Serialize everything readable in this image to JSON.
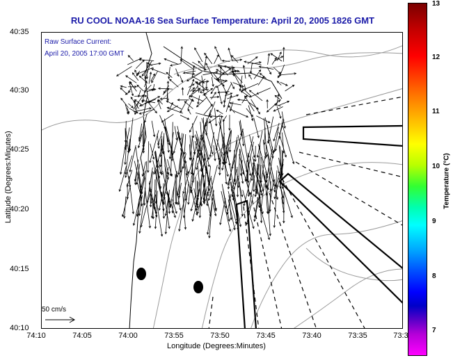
{
  "title": "RU COOL  NOAA-16  Sea Surface Temperature:  April 20, 2005 1826 GMT",
  "inset": {
    "line1": "Raw Surface Current:",
    "line2": "April 20, 2005 17:00 GMT"
  },
  "axes": {
    "xlabel": "Longitude (Degrees:Minutes)",
    "ylabel": "Latitude (Degrees:Minutes)",
    "yticks": [
      "40:35",
      "40:30",
      "40:25",
      "40:20",
      "40:15",
      "40:10"
    ],
    "xticks": [
      "74:10",
      "74:05",
      "74:00",
      "73:55",
      "73:50",
      "73:45",
      "73:40",
      "73:35",
      "73:3"
    ]
  },
  "scale": {
    "label": "50 cm/s"
  },
  "colorbar": {
    "label": "Temperature (°C)",
    "ticks": [
      "13",
      "12",
      "11",
      "10",
      "9",
      "8",
      "7"
    ],
    "colors": {
      "max": "#7a0000",
      "mid": "#ffff00",
      "min": "#ff00ff"
    }
  },
  "colors": {
    "title": "#1a1aa8",
    "contour": "#9a9a9a",
    "vector": "#000000"
  }
}
